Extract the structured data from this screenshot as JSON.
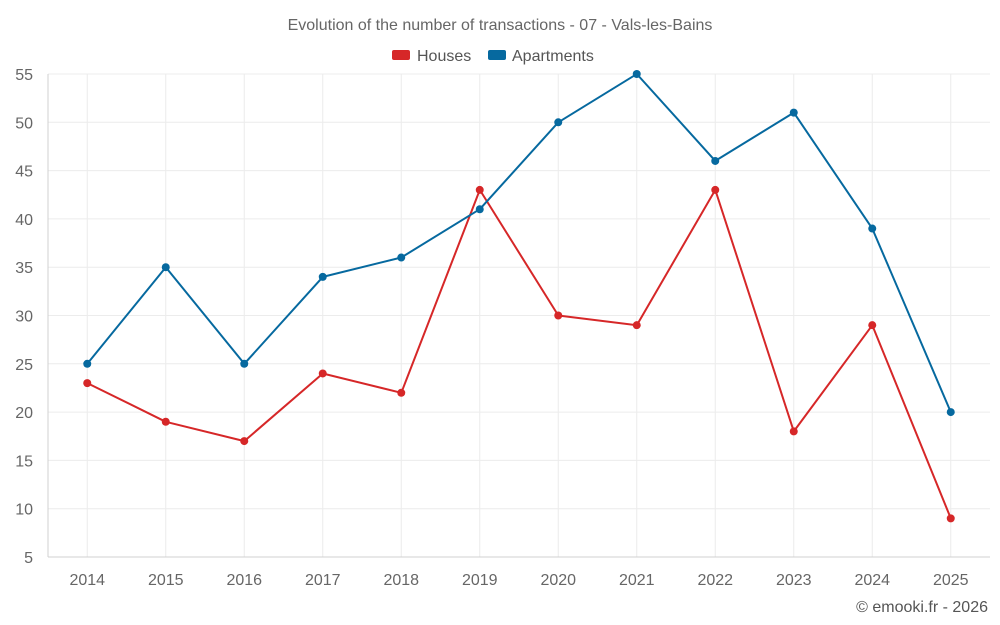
{
  "chart_data": {
    "type": "line",
    "title": "Evolution of the number of transactions - 07 - Vals-les-Bains",
    "xlabel": "",
    "ylabel": "",
    "categories": [
      "2014",
      "2015",
      "2016",
      "2017",
      "2018",
      "2019",
      "2020",
      "2021",
      "2022",
      "2023",
      "2024",
      "2025"
    ],
    "series": [
      {
        "name": "Houses",
        "color": "#d62728",
        "values": [
          23,
          19,
          17,
          24,
          22,
          43,
          30,
          29,
          43,
          18,
          29,
          9
        ]
      },
      {
        "name": "Apartments",
        "color": "#06699f",
        "values": [
          25,
          35,
          25,
          34,
          36,
          41,
          50,
          55,
          46,
          51,
          39,
          20
        ]
      }
    ],
    "ylim": [
      5,
      55
    ],
    "yticks": [
      5,
      10,
      15,
      20,
      25,
      30,
      35,
      40,
      45,
      50,
      55
    ],
    "grid": true,
    "legend_position": "top-center"
  },
  "footer": {
    "copyright": "© emooki.fr - 2026"
  }
}
